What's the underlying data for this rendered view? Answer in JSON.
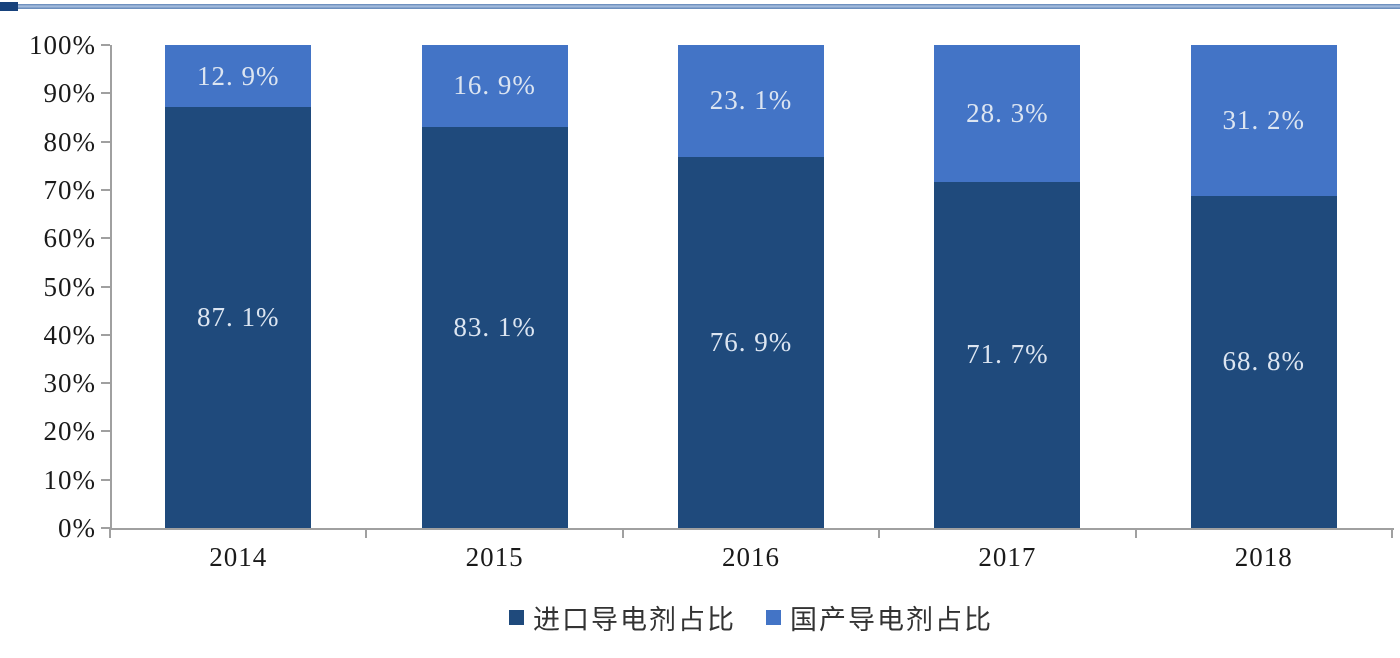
{
  "decor": {
    "top_rule_color": "#5f84b6",
    "top_rule_accent_color": "#17427c"
  },
  "chart_data": {
    "type": "bar",
    "stacked": true,
    "categories": [
      "2014",
      "2015",
      "2016",
      "2017",
      "2018"
    ],
    "series": [
      {
        "name": "进口导电剂占比",
        "color": "#1f4a7c",
        "values": [
          87.1,
          83.1,
          76.9,
          71.7,
          68.8
        ],
        "labels": [
          "87. 1%",
          "83. 1%",
          "76. 9%",
          "71. 7%",
          "68. 8%"
        ]
      },
      {
        "name": "国产导电剂占比",
        "color": "#4374c6",
        "values": [
          12.9,
          16.9,
          23.1,
          28.3,
          31.2
        ],
        "labels": [
          "12. 9%",
          "16. 9%",
          "23. 1%",
          "28. 3%",
          "31. 2%"
        ]
      }
    ],
    "y_ticks": [
      "0%",
      "10%",
      "20%",
      "30%",
      "40%",
      "50%",
      "60%",
      "70%",
      "80%",
      "90%",
      "100%"
    ],
    "ylim": [
      0,
      100
    ],
    "grid": false,
    "legend_position": "bottom",
    "bar_label_color": "#dce5f1",
    "axis_color": "#a0a0a0",
    "tick_label_color": "#1a1a1a",
    "legend_text_color": "#333333"
  }
}
